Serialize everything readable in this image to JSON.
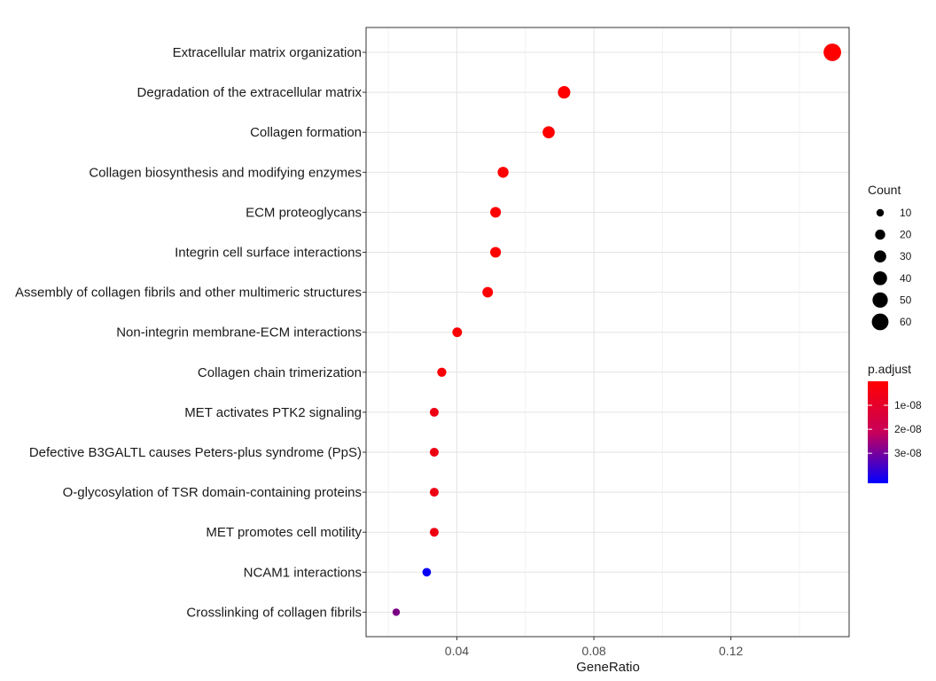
{
  "chart_data": {
    "type": "scatter",
    "xlabel": "GeneRatio",
    "xlim": [
      0.0135,
      0.1545
    ],
    "xticks": [
      0.04,
      0.08,
      0.12
    ],
    "xtick_labels": [
      "0.04",
      "0.08",
      "0.12"
    ],
    "grid": true,
    "legend_position": "right",
    "categories": [
      "Extracellular matrix organization",
      "Degradation of the extracellular matrix",
      "Collagen formation",
      "Collagen biosynthesis and modifying enzymes",
      "ECM proteoglycans",
      "Integrin cell surface interactions",
      "Assembly of collagen fibrils and other multimeric structures",
      "Non-integrin membrane-ECM interactions",
      "Collagen chain trimerization",
      "MET activates PTK2 signaling",
      "Defective B3GALTL causes Peters-plus syndrome (PpS)",
      "O-glycosylation of TSR domain-containing proteins",
      "MET promotes cell motility",
      "NCAM1 interactions",
      "Crosslinking of collagen fibrils"
    ],
    "gene_ratio": [
      0.1496,
      0.0713,
      0.0668,
      0.0535,
      0.0513,
      0.0513,
      0.049,
      0.0401,
      0.0356,
      0.0334,
      0.0334,
      0.0334,
      0.0334,
      0.0312,
      0.0223
    ],
    "count": [
      67,
      32,
      30,
      24,
      23,
      23,
      22,
      18,
      16,
      15,
      15,
      15,
      15,
      14,
      10
    ],
    "p_adjust": [
      1e-15,
      1e-12,
      1e-11,
      1e-10,
      1e-10,
      1e-10,
      2e-10,
      5e-10,
      1e-09,
      3e-09,
      3e-09,
      3e-09,
      3e-09,
      4.1e-08,
      2.2e-08
    ],
    "size_legend": {
      "title": "Count",
      "values": [
        10,
        20,
        30,
        40,
        50,
        60
      ],
      "labels": [
        "10",
        "20",
        "30",
        "40",
        "50",
        "60"
      ]
    },
    "color_legend": {
      "title": "p.adjust",
      "range": [
        0,
        4.25e-08
      ],
      "low_color": "#ff0000",
      "high_color": "#0000ff",
      "ticks": [
        1e-08,
        2e-08,
        3e-08
      ],
      "labels": [
        "1e-08",
        "2e-08",
        "3e-08"
      ]
    }
  }
}
